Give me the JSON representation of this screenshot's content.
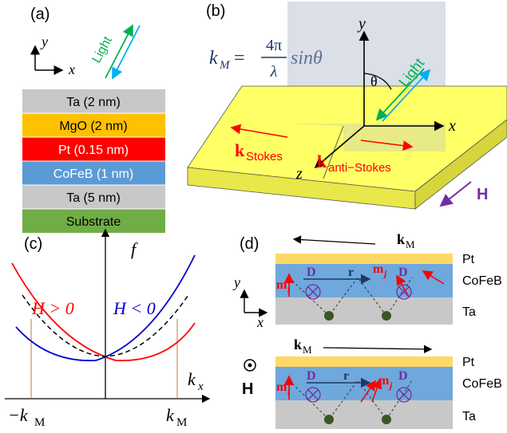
{
  "panels": {
    "a": {
      "label": "(a)",
      "axis_y": "y",
      "axis_x": "x",
      "light": "Light",
      "layers": [
        {
          "text": "Ta (2 nm)",
          "color": "#c8c8c8"
        },
        {
          "text": "MgO (2 nm)",
          "color": "#ffc000"
        },
        {
          "text": "Pt (0.15 nm)",
          "color": "#ff0000"
        },
        {
          "text": "CoFeB (1 nm)",
          "color": "#5b9bd5"
        },
        {
          "text": "Ta (5 nm)",
          "color": "#c8c8c8"
        },
        {
          "text": "Substrate",
          "color": "#70ad47"
        }
      ]
    },
    "b": {
      "label": "(b)",
      "formula_lhs": "k",
      "formula_sub": "M",
      "formula_eq": " = ",
      "formula_num": "4π",
      "formula_den": "λ",
      "formula_rhs": "sinθ",
      "axis_y": "y",
      "axis_x": "x",
      "axis_z": "z",
      "theta": "θ",
      "light": "Light",
      "k_stokes": "k",
      "k_stokes_sub": "Stokes",
      "k_anti": "k",
      "k_anti_sub": "anti−Stokes",
      "field": "H"
    },
    "c": {
      "label": "(c)",
      "f_label": "f",
      "h_pos": "H > 0",
      "h_neg": "H < 0",
      "kx": "k",
      "kx_sub": "x",
      "neg_km": "−k",
      "neg_km_sub": "M",
      "pos_km": "k",
      "pos_km_sub": "M"
    },
    "d": {
      "label": "(d)",
      "km_top": "k",
      "km_top_sub": "M",
      "km_bottom": "k",
      "km_bottom_sub": "M",
      "layer_pt": "Pt",
      "layer_cofeb": "CoFeB",
      "layer_ta": "Ta",
      "axis_y": "y",
      "axis_x": "x",
      "field": "H",
      "d_label": "D",
      "r_label": "r",
      "mi": "m",
      "mi_sub": "i",
      "mj": "m",
      "mj_sub": "j"
    }
  },
  "colors": {
    "red": "#ff0000",
    "blue": "#0000cc",
    "green_light": "#00b050",
    "cyan_light": "#00b0f0",
    "purple": "#7030a0",
    "formula": "#1f3864",
    "dispersion_pos": "#ff0000",
    "dispersion_neg": "#0000cc"
  }
}
